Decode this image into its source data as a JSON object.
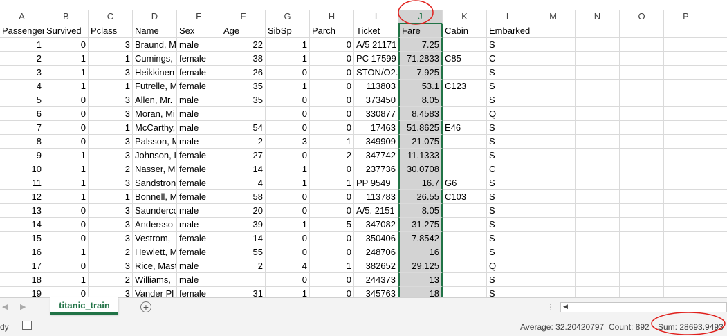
{
  "columns": [
    "A",
    "B",
    "C",
    "D",
    "E",
    "F",
    "G",
    "H",
    "I",
    "J",
    "K",
    "L",
    "M",
    "N",
    "O",
    "P"
  ],
  "field_names": [
    "Passenger",
    "Survived",
    "Pclass",
    "Name",
    "Sex",
    "Age",
    "SibSp",
    "Parch",
    "Ticket",
    "Fare",
    "Cabin",
    "Embarked"
  ],
  "rows": [
    [
      1,
      0,
      3,
      "Braund, M",
      "male",
      22,
      1,
      0,
      "A/5 21171",
      7.25,
      null,
      "S"
    ],
    [
      2,
      1,
      1,
      "Cumings,",
      "female",
      38,
      1,
      0,
      "PC 17599",
      71.2833,
      "C85",
      "C"
    ],
    [
      3,
      1,
      3,
      "Heikkinen",
      "female",
      26,
      0,
      0,
      "STON/O2.",
      7.925,
      null,
      "S"
    ],
    [
      4,
      1,
      1,
      "Futrelle, M",
      "female",
      35,
      1,
      0,
      113803,
      53.1,
      "C123",
      "S"
    ],
    [
      5,
      0,
      3,
      "Allen, Mr.",
      "male",
      35,
      0,
      0,
      373450,
      8.05,
      null,
      "S"
    ],
    [
      6,
      0,
      3,
      "Moran, Mi",
      "male",
      null,
      0,
      0,
      330877,
      8.4583,
      null,
      "Q"
    ],
    [
      7,
      0,
      1,
      "McCarthy,",
      "male",
      54,
      0,
      0,
      17463,
      51.8625,
      "E46",
      "S"
    ],
    [
      8,
      0,
      3,
      "Palsson, M",
      "male",
      2,
      3,
      1,
      349909,
      21.075,
      null,
      "S"
    ],
    [
      9,
      1,
      3,
      "Johnson, I",
      "female",
      27,
      0,
      2,
      347742,
      11.1333,
      null,
      "S"
    ],
    [
      10,
      1,
      2,
      "Nasser, M",
      "female",
      14,
      1,
      0,
      237736,
      30.0708,
      null,
      "C"
    ],
    [
      11,
      1,
      3,
      "Sandstron",
      "female",
      4,
      1,
      1,
      "PP 9549",
      16.7,
      "G6",
      "S"
    ],
    [
      12,
      1,
      1,
      "Bonnell, M",
      "female",
      58,
      0,
      0,
      113783,
      26.55,
      "C103",
      "S"
    ],
    [
      13,
      0,
      3,
      "Saunderco",
      "male",
      20,
      0,
      0,
      "A/5. 2151",
      8.05,
      null,
      "S"
    ],
    [
      14,
      0,
      3,
      "Andersso",
      "male",
      39,
      1,
      5,
      347082,
      31.275,
      null,
      "S"
    ],
    [
      15,
      0,
      3,
      "Vestrom,",
      "female",
      14,
      0,
      0,
      350406,
      7.8542,
      null,
      "S"
    ],
    [
      16,
      1,
      2,
      "Hewlett, M",
      "female",
      55,
      0,
      0,
      248706,
      16,
      null,
      "S"
    ],
    [
      17,
      0,
      3,
      "Rice, Mast",
      "male",
      2,
      4,
      1,
      382652,
      29.125,
      null,
      "Q"
    ],
    [
      18,
      1,
      2,
      "Williams,",
      "male",
      null,
      0,
      0,
      244373,
      13,
      null,
      "S"
    ],
    [
      19,
      0,
      3,
      "Vander Pl",
      "female",
      31,
      1,
      0,
      345763,
      18,
      null,
      "S"
    ]
  ],
  "sheet_tab": "titanic_train",
  "status": {
    "mode": "dy",
    "average": "Average: 32.20420797",
    "count": "Count: 892",
    "sum": "Sum: 28693.9493"
  }
}
